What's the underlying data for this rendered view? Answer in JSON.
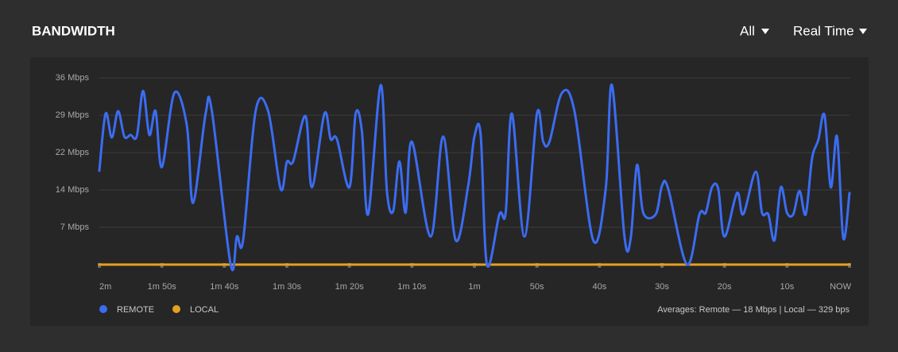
{
  "header": {
    "title": "BANDWIDTH",
    "filter": "All",
    "range": "Real Time"
  },
  "chart_data": {
    "type": "line",
    "x": [
      -120,
      -119,
      -118,
      -117,
      -116,
      -115,
      -114,
      -113,
      -112,
      -111,
      -110,
      -108,
      -106,
      -105,
      -103,
      -102,
      -99,
      -98,
      -97,
      -95,
      -93,
      -91,
      -90,
      -89,
      -87,
      -86,
      -84,
      -83,
      -82,
      -80,
      -79,
      -78,
      -77,
      -75,
      -74,
      -73,
      -72,
      -71,
      -70,
      -67,
      -65,
      -63,
      -61,
      -60,
      -59,
      -58,
      -56,
      -55,
      -54,
      -52,
      -50,
      -49,
      -48,
      -46,
      -44,
      -41,
      -39,
      -38,
      -36,
      -35,
      -34,
      -33,
      -31,
      -30,
      -29,
      -26,
      -24,
      -23,
      -22,
      -21,
      -20,
      -18,
      -17,
      -15,
      -14,
      -13,
      -12,
      -11,
      -10,
      -9,
      -8,
      -7,
      -6,
      -5,
      -4,
      -3,
      -2,
      -1,
      0
    ],
    "series": [
      {
        "name": "REMOTE",
        "color": "#3b6cf2",
        "values": [
          18.1,
          29.1,
          24.5,
          29.6,
          24.7,
          25,
          24.8,
          33.5,
          25,
          29.6,
          18.8,
          33.1,
          26.8,
          11.9,
          29.1,
          29.6,
          0,
          5.4,
          4.7,
          29.6,
          29.6,
          14.6,
          19.8,
          19.9,
          28.6,
          14.9,
          29.1,
          24.2,
          24.2,
          14.9,
          29.1,
          25.7,
          9.7,
          34.6,
          14.2,
          10.3,
          19.9,
          10,
          23.7,
          5.4,
          24.7,
          4.7,
          15.2,
          24.7,
          25,
          0,
          9.7,
          10,
          29.1,
          5.4,
          29.1,
          23.7,
          23.7,
          33.1,
          29.6,
          4.7,
          14.6,
          34.6,
          5.4,
          5.1,
          19.2,
          10,
          9.7,
          15.2,
          14.6,
          0,
          9.7,
          10,
          14.9,
          14.6,
          5.4,
          13.8,
          9.7,
          17.9,
          10,
          9.7,
          4.7,
          14.9,
          10,
          9.7,
          14.2,
          9.7,
          20.4,
          24,
          28.8,
          14.9,
          24.7,
          5.1,
          13.8
        ]
      },
      {
        "name": "LOCAL",
        "color": "#e5a020",
        "values": [
          0,
          0,
          0,
          0,
          0,
          0,
          0,
          0,
          0,
          0,
          0,
          0,
          0,
          0,
          0,
          0,
          0,
          0,
          0,
          0,
          0,
          0,
          0,
          0,
          0,
          0,
          0,
          0,
          0,
          0,
          0,
          0,
          0,
          0,
          0,
          0,
          0,
          0,
          0,
          0,
          0,
          0,
          0,
          0,
          0,
          0,
          0,
          0,
          0,
          0,
          0,
          0,
          0,
          0,
          0,
          0,
          0,
          0,
          0,
          0,
          0,
          0,
          0,
          0,
          0,
          0,
          0,
          0,
          0,
          0,
          0,
          0,
          0,
          0,
          0,
          0,
          0,
          0,
          0,
          0,
          0,
          0,
          0,
          0,
          0,
          0,
          0,
          0,
          0
        ]
      }
    ],
    "xlim": [
      -120,
      0
    ],
    "xticks": [
      {
        "value": -120,
        "label": "2m"
      },
      {
        "value": -110,
        "label": "1m 50s"
      },
      {
        "value": -100,
        "label": "1m 40s"
      },
      {
        "value": -90,
        "label": "1m 30s"
      },
      {
        "value": -80,
        "label": "1m 20s"
      },
      {
        "value": -70,
        "label": "1m 10s"
      },
      {
        "value": -60,
        "label": "1m"
      },
      {
        "value": -50,
        "label": "50s"
      },
      {
        "value": -40,
        "label": "40s"
      },
      {
        "value": -30,
        "label": "30s"
      },
      {
        "value": -20,
        "label": "20s"
      },
      {
        "value": -10,
        "label": "10s"
      },
      {
        "value": 0,
        "label": "NOW"
      }
    ],
    "ylim": [
      0,
      36
    ],
    "yticks": [
      {
        "value": 7.2,
        "label": "7 Mbps"
      },
      {
        "value": 14.4,
        "label": "14 Mbps"
      },
      {
        "value": 21.6,
        "label": "22 Mbps"
      },
      {
        "value": 28.8,
        "label": "29 Mbps"
      },
      {
        "value": 36,
        "label": "36 Mbps"
      }
    ],
    "grid": true,
    "legend": "bottom-left",
    "footnote": "Averages: Remote — 18 Mbps | Local — 329 bps"
  }
}
